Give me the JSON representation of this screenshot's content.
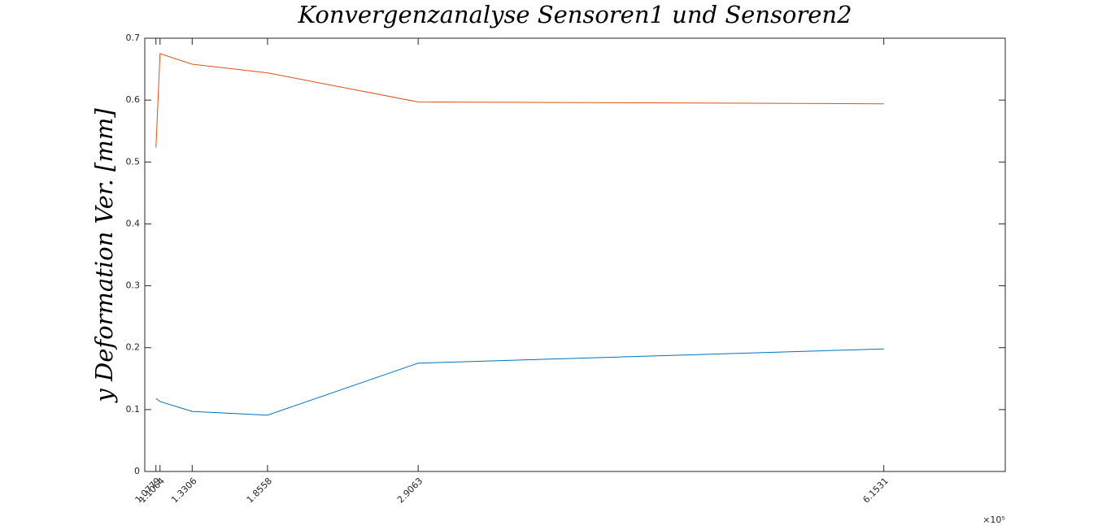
{
  "chart_data": {
    "type": "line",
    "title": "Konvergenzanalyse Sensoren1 und Sensoren2",
    "y_label": "y Deformation Ver. [mm]",
    "x_multiplier": "×10⁵",
    "x": [
      107790,
      110640,
      133060,
      185580,
      290630,
      615310
    ],
    "series": [
      {
        "color": "#0072bd",
        "values": [
          0.118,
          0.113,
          0.097,
          0.091,
          0.175,
          0.198
        ]
      },
      {
        "color": "#d95319",
        "values": [
          0.523,
          0.675,
          0.658,
          0.644,
          0.597,
          0.594
        ]
      }
    ],
    "xlim": [
      100000,
      700000
    ],
    "xticks": [
      {
        "value": 107790,
        "label": "1.0779"
      },
      {
        "value": 110640,
        "label": "1.1064"
      },
      {
        "value": 133060,
        "label": "1.3306"
      },
      {
        "value": 185580,
        "label": "1.8558"
      },
      {
        "value": 290630,
        "label": "2.9063"
      },
      {
        "value": 615310,
        "label": "6.1531"
      }
    ],
    "ylim": [
      0,
      0.7
    ],
    "yticks": [
      0,
      0.1,
      0.2,
      0.3,
      0.4,
      0.5,
      0.6,
      0.7
    ],
    "grid": false
  }
}
